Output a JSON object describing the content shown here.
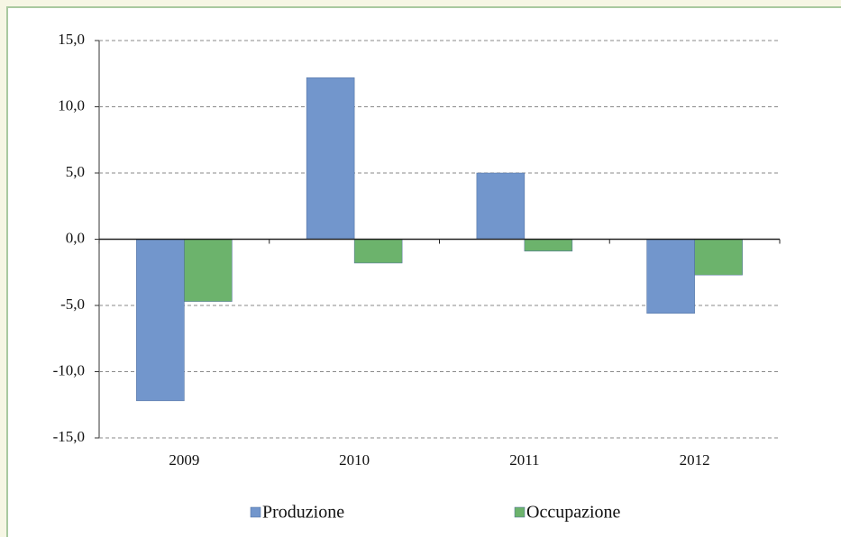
{
  "chart_data": {
    "type": "bar",
    "categories": [
      "2009",
      "2010",
      "2011",
      "2012"
    ],
    "series": [
      {
        "name": "Produzione",
        "color": "#7296cc",
        "values": [
          -12.2,
          12.2,
          5.0,
          -5.6
        ]
      },
      {
        "name": "Occupazione",
        "color": "#6cb36c",
        "values": [
          -4.7,
          -1.8,
          -0.9,
          -2.7
        ]
      }
    ],
    "ylim": [
      -15,
      15
    ],
    "yticks": [
      {
        "value": -15,
        "label": "-15,0"
      },
      {
        "value": -10,
        "label": "-10,0"
      },
      {
        "value": -5,
        "label": "-5,0"
      },
      {
        "value": 0,
        "label": "0,0"
      },
      {
        "value": 5,
        "label": "5,0"
      },
      {
        "value": 10,
        "label": "10,0"
      },
      {
        "value": 15,
        "label": "15,0"
      }
    ],
    "grid": true
  }
}
